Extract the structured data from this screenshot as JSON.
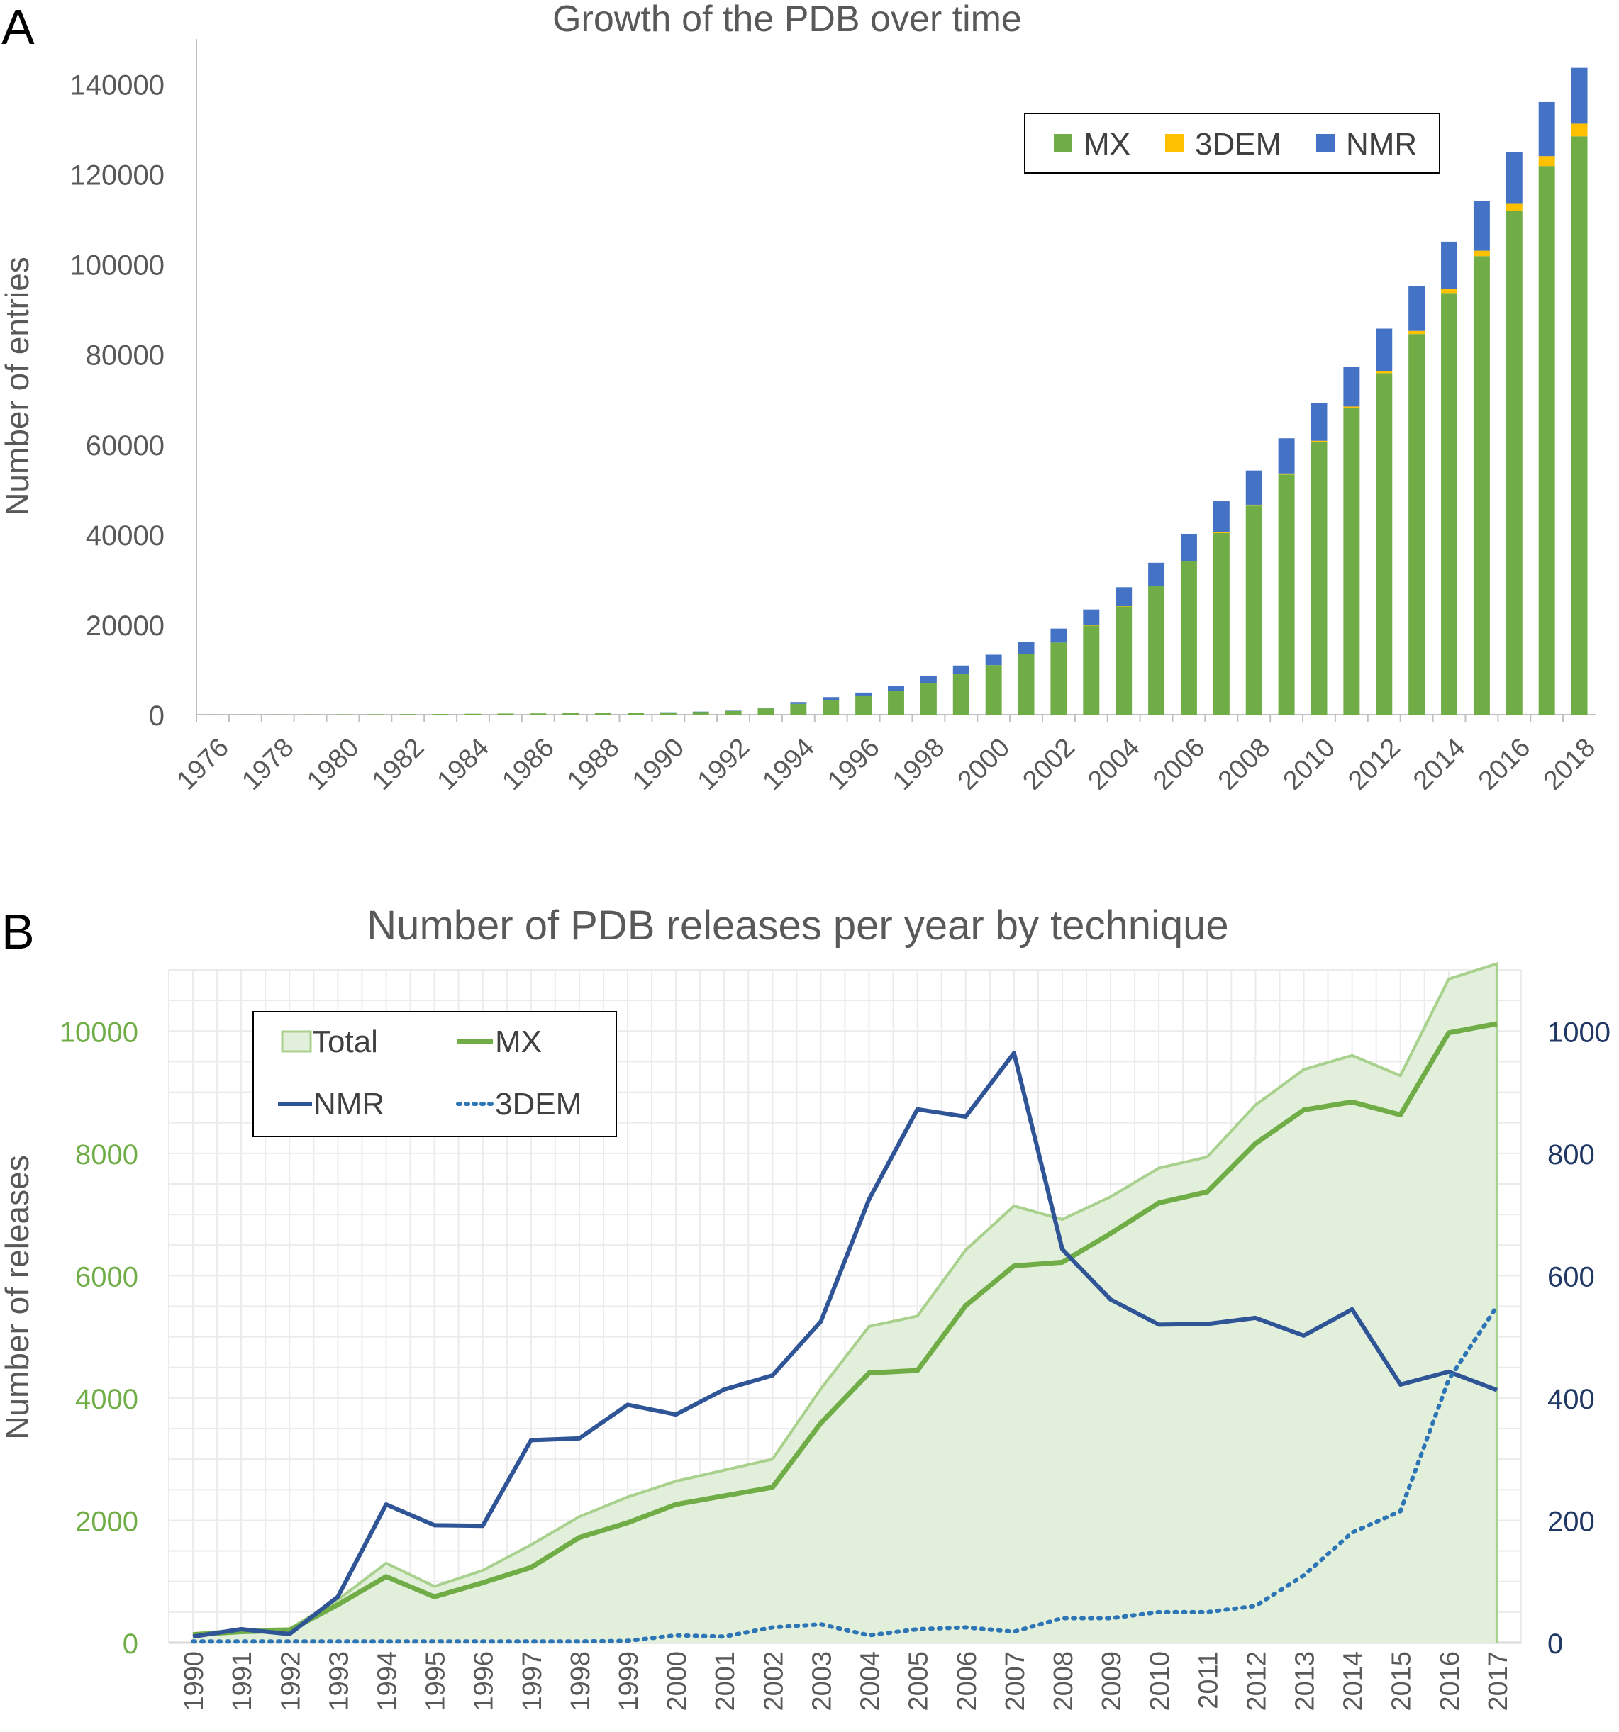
{
  "panel_a": {
    "letter": "A"
  },
  "panel_b": {
    "letter": "B"
  },
  "colors": {
    "mx": "#70AD47",
    "em3d": "#FFC000",
    "nmr": "#4472C4",
    "total_fill": "#E2EFDA",
    "total_line": "#A9D18E",
    "mx_line": "#70AD47",
    "nmr_line": "#2F5597",
    "em_line": "#2E75B6",
    "axis_text": "#595959",
    "left_axis_text_b": "#70AD47",
    "right_axis_text_b": "#203864",
    "grid": "#EBEBEB"
  },
  "chart_data": [
    {
      "type": "bar",
      "stacked": true,
      "title": "Growth of the PDB over time",
      "xlabel": "",
      "ylabel": "Number of entries",
      "ylim": [
        0,
        150000
      ],
      "yticks": [
        0,
        20000,
        40000,
        60000,
        80000,
        100000,
        120000,
        140000
      ],
      "ytick_labels": [
        "0",
        "20000",
        "40000",
        "60000",
        "80000",
        "100000",
        "120000",
        "140000"
      ],
      "legend_position": "top-right",
      "categories": [
        "1976",
        "1977",
        "1978",
        "1979",
        "1980",
        "1981",
        "1982",
        "1983",
        "1984",
        "1985",
        "1986",
        "1987",
        "1988",
        "1989",
        "1990",
        "1991",
        "1992",
        "1993",
        "1994",
        "1995",
        "1996",
        "1997",
        "1998",
        "1999",
        "2000",
        "2001",
        "2002",
        "2003",
        "2004",
        "2005",
        "2006",
        "2007",
        "2008",
        "2009",
        "2010",
        "2011",
        "2012",
        "2013",
        "2014",
        "2015",
        "2016",
        "2017",
        "2018"
      ],
      "xtick_labels": [
        "1976",
        "1978",
        "1980",
        "1982",
        "1984",
        "1986",
        "1988",
        "1990",
        "1992",
        "1994",
        "1996",
        "1998",
        "2000",
        "2002",
        "2004",
        "2006",
        "2008",
        "2010",
        "2012",
        "2014",
        "2016",
        "2018"
      ],
      "series": [
        {
          "name": "MX",
          "values": [
            13,
            20,
            30,
            40,
            60,
            80,
            110,
            150,
            200,
            250,
            280,
            320,
            370,
            430,
            500,
            650,
            850,
            1400,
            2400,
            3300,
            4100,
            5300,
            7000,
            9000,
            11000,
            13500,
            16000,
            19800,
            24000,
            28500,
            34000,
            40300,
            46400,
            53300,
            60500,
            68000,
            75800,
            84500,
            93600,
            101800,
            111800,
            121800,
            128400
          ]
        },
        {
          "name": "3DEM",
          "values": [
            0,
            0,
            0,
            0,
            0,
            0,
            0,
            0,
            0,
            0,
            0,
            0,
            0,
            0,
            0,
            0,
            0,
            0,
            0,
            0,
            0,
            0,
            0,
            0,
            0,
            0,
            0,
            50,
            80,
            110,
            140,
            170,
            200,
            250,
            300,
            400,
            500,
            700,
            900,
            1200,
            1600,
            2200,
            2800
          ]
        },
        {
          "name": "NMR",
          "values": [
            0,
            0,
            0,
            0,
            0,
            0,
            0,
            0,
            0,
            0,
            0,
            0,
            0,
            0,
            10,
            20,
            30,
            100,
            400,
            600,
            800,
            1100,
            1500,
            1900,
            2300,
            2700,
            3100,
            3500,
            4200,
            5100,
            6000,
            6900,
            7600,
            7800,
            8300,
            8800,
            9400,
            10000,
            10500,
            11000,
            11500,
            12000,
            12400
          ]
        }
      ]
    },
    {
      "type": "line",
      "title": "Number of PDB releases per year by technique",
      "xlabel": "",
      "ylabel": "Number of releases",
      "ylim": [
        0,
        11000
      ],
      "yticks": [
        0,
        2000,
        4000,
        6000,
        8000,
        10000
      ],
      "ytick_labels": [
        "0",
        "2000",
        "4000",
        "6000",
        "8000",
        "10000"
      ],
      "y2lim": [
        0,
        1100
      ],
      "y2ticks": [
        0,
        200,
        400,
        600,
        800,
        1000
      ],
      "y2tick_labels": [
        "0",
        "200",
        "400",
        "600",
        "800",
        "1000"
      ],
      "legend_position": "top-left",
      "grid": true,
      "categories": [
        "1990",
        "1991",
        "1992",
        "1993",
        "1994",
        "1995",
        "1996",
        "1997",
        "1998",
        "1999",
        "2000",
        "2001",
        "2002",
        "2003",
        "2004",
        "2005",
        "2006",
        "2007",
        "2008",
        "2009",
        "2010",
        "2011",
        "2012",
        "2013",
        "2014",
        "2015",
        "2016",
        "2017"
      ],
      "series": [
        {
          "name": "Total",
          "style": "area",
          "axis": "left",
          "values": [
            150,
            210,
            230,
            700,
            1300,
            920,
            1180,
            1600,
            2060,
            2380,
            2640,
            2820,
            3000,
            4150,
            5170,
            5340,
            6420,
            7140,
            6920,
            7290,
            7760,
            7940,
            8790,
            9370,
            9600,
            9270,
            10850,
            11100
          ]
        },
        {
          "name": "MX",
          "style": "line",
          "axis": "left",
          "values": [
            130,
            180,
            200,
            620,
            1080,
            750,
            980,
            1230,
            1720,
            1960,
            2260,
            2400,
            2540,
            3590,
            4410,
            4450,
            5510,
            6160,
            6220,
            6690,
            7190,
            7370,
            8160,
            8710,
            8840,
            8630,
            9970,
            10120
          ]
        },
        {
          "name": "NMR",
          "style": "line",
          "axis": "right",
          "values": [
            10,
            22,
            14,
            75,
            226,
            192,
            191,
            331,
            334,
            389,
            373,
            414,
            437,
            525,
            725,
            872,
            860,
            964,
            643,
            561,
            520,
            521,
            531,
            502,
            545,
            422,
            443,
            413
          ]
        },
        {
          "name": "3DEM",
          "style": "dotted",
          "axis": "right",
          "values": [
            2,
            2,
            2,
            2,
            2,
            2,
            2,
            2,
            2,
            3,
            12,
            10,
            25,
            30,
            12,
            22,
            25,
            18,
            40,
            40,
            50,
            50,
            60,
            110,
            180,
            215,
            430,
            550
          ]
        }
      ]
    }
  ]
}
